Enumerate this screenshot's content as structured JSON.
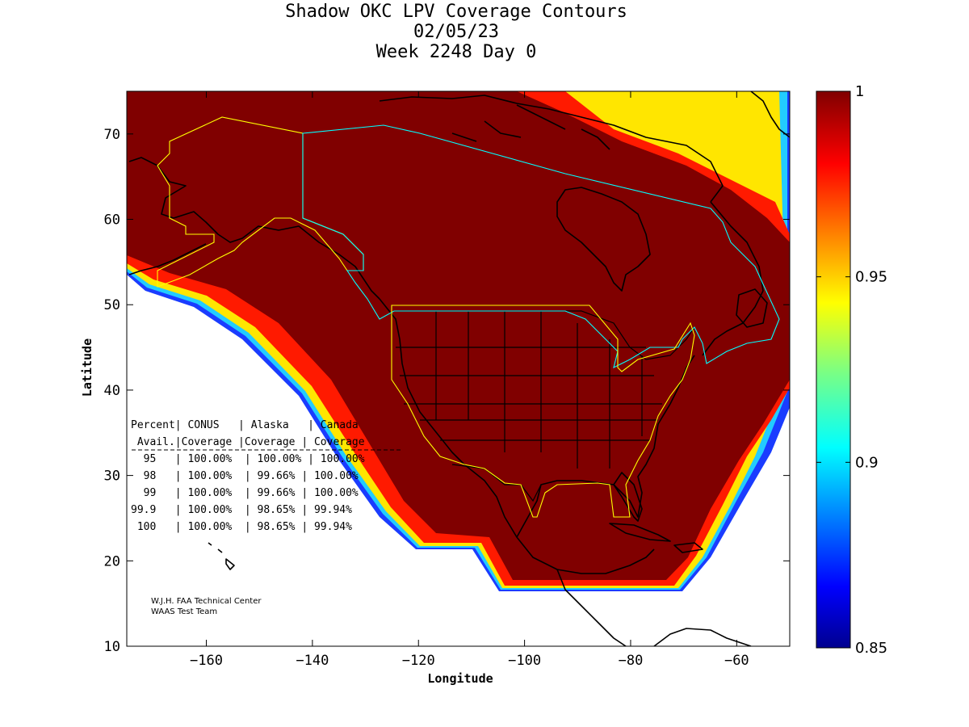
{
  "title": {
    "line1": "Shadow OKC LPV Coverage Contours",
    "line2": "02/05/23",
    "line3": "Week 2248 Day 0"
  },
  "axes": {
    "xlabel": "Longitude",
    "ylabel": "Latitude",
    "xlim": [
      -175,
      -50
    ],
    "ylim": [
      10,
      75
    ],
    "xticks": [
      -160,
      -140,
      -120,
      -100,
      -80,
      -60
    ],
    "yticks": [
      10,
      20,
      30,
      40,
      50,
      60,
      70
    ]
  },
  "colorbar": {
    "colormap": "jet",
    "range": [
      0.85,
      1
    ],
    "ticks": [
      "1",
      "0.95",
      "0.9",
      "0.85"
    ],
    "tick_values": [
      1,
      0.95,
      0.9,
      0.85
    ]
  },
  "table": {
    "header1": "Percent| CONUS   | Alaska   | Canada",
    "header2": " Avail.|Coverage |Coverage | Coverage",
    "rows": [
      "  95   | 100.00%  | 100.00% | 100.00%",
      "  98   | 100.00%  | 99.66% | 100.00%",
      "  99   | 100.00%  | 99.66% | 100.00%",
      "99.9   | 100.00%  | 98.65% | 99.94%",
      " 100   | 100.00%  | 98.65% | 99.94%"
    ]
  },
  "credit": {
    "line1": "W.J.H. FAA Technical Center",
    "line2": "WAAS Test Team"
  },
  "colors": {
    "coverage_full": "#800000",
    "alaska_region": "#ffff00",
    "canada_region": "#00ffff",
    "conus_region": "#ffff00",
    "coastline": "#000000"
  },
  "chart_data": {
    "type": "heatmap",
    "variable": "LPV availability",
    "scale": [
      0.85,
      1
    ],
    "region_table": [
      {
        "percent": 95,
        "conus": 100.0,
        "alaska": 100.0,
        "canada": 100.0
      },
      {
        "percent": 98,
        "conus": 100.0,
        "alaska": 99.66,
        "canada": 100.0
      },
      {
        "percent": 99,
        "conus": 100.0,
        "alaska": 99.66,
        "canada": 100.0
      },
      {
        "percent": 99.9,
        "conus": 100.0,
        "alaska": 98.65,
        "canada": 99.94
      },
      {
        "percent": 100,
        "conus": 100.0,
        "alaska": 98.65,
        "canada": 99.94
      }
    ]
  }
}
